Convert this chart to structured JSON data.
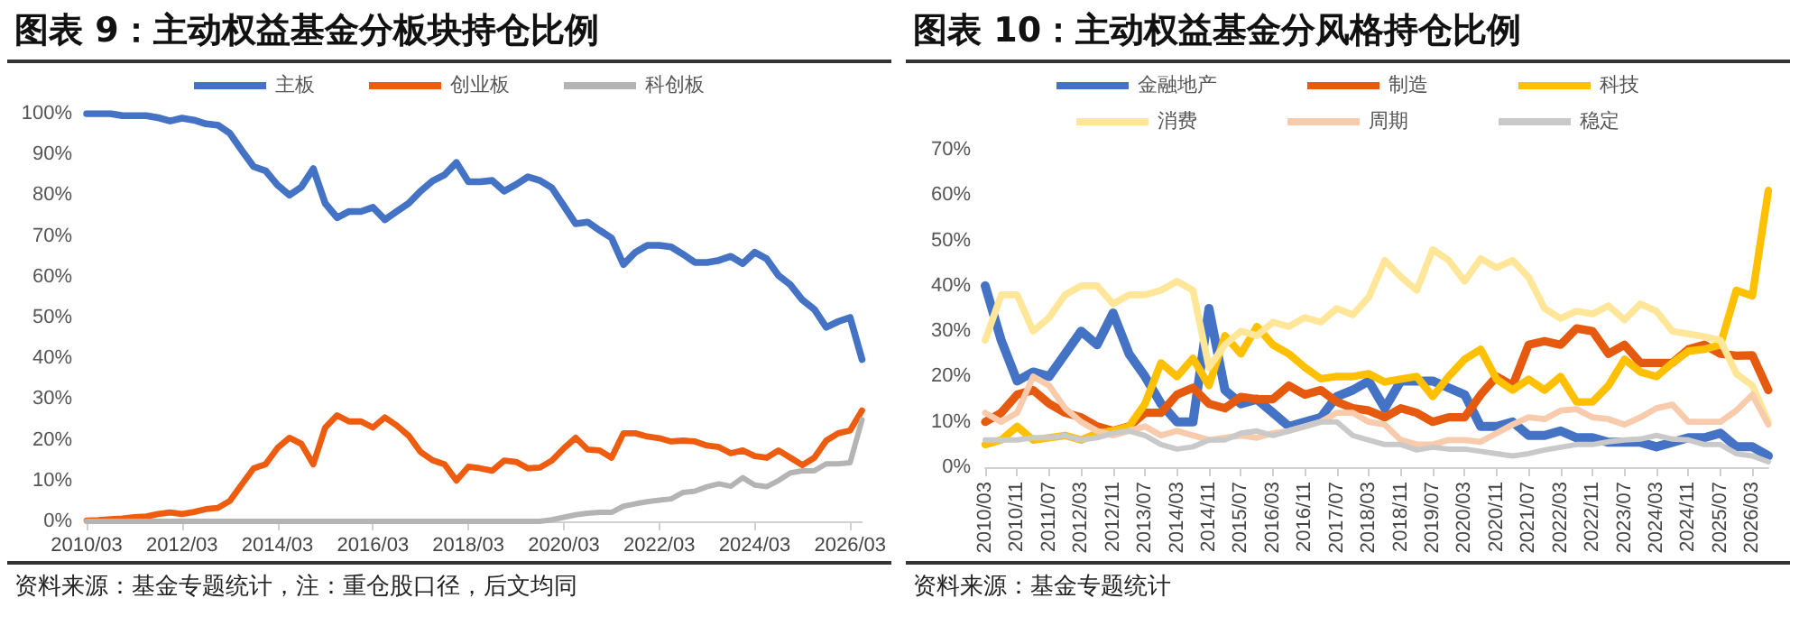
{
  "chart_data": [
    {
      "type": "line",
      "title": "图表 9：主动权益基金分板块持仓比例",
      "annotations": [
        "资料来源：基金专题统计，注：重仓股口径，后文均同"
      ],
      "legend": "top",
      "marker": "none",
      "categories": [
        "2010/03",
        null,
        null,
        null,
        null,
        null,
        null,
        null,
        "2012/03",
        null,
        null,
        null,
        null,
        null,
        null,
        null,
        "2014/03",
        null,
        null,
        null,
        null,
        null,
        null,
        null,
        "2016/03",
        null,
        null,
        null,
        null,
        null,
        null,
        null,
        "2018/03",
        null,
        null,
        null,
        null,
        null,
        null,
        null,
        "2020/03",
        null,
        null,
        null,
        null,
        null,
        null,
        null,
        "2022/03",
        null,
        null,
        null,
        null,
        null,
        null,
        null,
        "2024/03",
        null,
        null,
        null,
        null,
        null,
        null,
        null,
        "2026/03",
        null
      ],
      "ylim": [
        0,
        100
      ],
      "yticks": [
        {
          "value": 0,
          "label": "0%"
        },
        {
          "value": 10,
          "label": "10%"
        },
        {
          "value": 20,
          "label": "20%"
        },
        {
          "value": 30,
          "label": "30%"
        },
        {
          "value": 40,
          "label": "40%"
        },
        {
          "value": 50,
          "label": "50%"
        },
        {
          "value": 60,
          "label": "60%"
        },
        {
          "value": 70,
          "label": "70%"
        },
        {
          "value": 80,
          "label": "80%"
        },
        {
          "value": 90,
          "label": "90%"
        },
        {
          "value": 100,
          "label": "100%"
        }
      ],
      "series": [
        {
          "name": "主板",
          "color": "#4472c4",
          "values": [
            100,
            100,
            100,
            99.5,
            99.5,
            99.5,
            99,
            98.2,
            98.9,
            98.4,
            97.5,
            97.2,
            95.2,
            91,
            87,
            86,
            82.5,
            80,
            82,
            86.5,
            78,
            74.5,
            76,
            76,
            77,
            74,
            76,
            78,
            81,
            83.5,
            85,
            88,
            83.3,
            83.3,
            83.6,
            81,
            82.6,
            84.5,
            83.6,
            81.8,
            77.4,
            73,
            73.4,
            71.4,
            69.5,
            63,
            66,
            67.7,
            67.7,
            67.3,
            65.5,
            63.5,
            63.5,
            64,
            65,
            63.2,
            66,
            64.4,
            60.3,
            58,
            54.3,
            52,
            47.6,
            49,
            50,
            39.7
          ]
        },
        {
          "name": "创业板",
          "color": "#ed5c0f",
          "values": [
            0.2,
            0.3,
            0.5,
            0.7,
            1,
            1.2,
            1.8,
            2.2,
            1.8,
            2.3,
            3,
            3.3,
            5,
            9,
            13,
            14,
            18,
            20.5,
            19,
            14,
            23,
            26,
            24.5,
            24.5,
            23,
            25.5,
            23.5,
            21,
            17,
            15,
            14,
            10,
            13.4,
            13,
            12.4,
            14.9,
            14.6,
            13,
            13.2,
            14.9,
            17.9,
            20.5,
            17.6,
            17.4,
            15.6,
            21.6,
            21.6,
            20.8,
            20.4,
            19.6,
            19.8,
            19.6,
            18.6,
            18.2,
            16.7,
            17.4,
            16,
            15.6,
            17.4,
            15.6,
            13.8,
            15.6,
            19.8,
            21.6,
            22.3,
            27.2
          ]
        },
        {
          "name": "科创板",
          "color": "#b4b4b4",
          "values": [
            0,
            0,
            0,
            0,
            0,
            0,
            0,
            0,
            0,
            0,
            0,
            0,
            0,
            0,
            0,
            0,
            0,
            0,
            0,
            0,
            0,
            0,
            0,
            0,
            0,
            0,
            0,
            0,
            0,
            0,
            0,
            0,
            0,
            0,
            0,
            0,
            0,
            0,
            0,
            0.4,
            1,
            1.6,
            2,
            2.2,
            2.2,
            3.7,
            4.3,
            4.8,
            5.2,
            5.5,
            7.1,
            7.4,
            8.5,
            9.2,
            8.6,
            10.7,
            8.9,
            8.5,
            10,
            11.9,
            12.4,
            12.4,
            14.1,
            14.1,
            14.4,
            24.9
          ]
        }
      ]
    },
    {
      "type": "line",
      "title": "图表 10：主动权益基金分风格持仓比例",
      "annotations": [
        "资料来源：基金专题统计"
      ],
      "legend": "top",
      "marker": "none",
      "categories": [
        "2010/03",
        null,
        "2010/11",
        null,
        "2011/07",
        null,
        "2012/03",
        null,
        "2012/11",
        null,
        "2013/07",
        null,
        "2014/03",
        null,
        "2014/11",
        null,
        "2015/07",
        null,
        "2016/03",
        null,
        "2016/11",
        null,
        "2017/07",
        null,
        "2018/03",
        null,
        "2018/11",
        null,
        "2019/07",
        null,
        "2020/03",
        null,
        "2020/11",
        null,
        "2021/07",
        null,
        "2022/03",
        null,
        "2022/11",
        null,
        "2023/07",
        null,
        "2024/03",
        null,
        "2024/11",
        null,
        "2025/07",
        null,
        "2026/03",
        null
      ],
      "ylim": [
        0,
        70
      ],
      "yticks": [
        {
          "value": 0,
          "label": "0%"
        },
        {
          "value": 10,
          "label": "10%"
        },
        {
          "value": 20,
          "label": "20%"
        },
        {
          "value": 30,
          "label": "30%"
        },
        {
          "value": 40,
          "label": "40%"
        },
        {
          "value": 50,
          "label": "50%"
        },
        {
          "value": 60,
          "label": "60%"
        },
        {
          "value": 70,
          "label": "70%"
        }
      ],
      "series": [
        {
          "name": "金融地产",
          "color": "#4472c4",
          "values": [
            40,
            28,
            19,
            21,
            20,
            25,
            30,
            27,
            34,
            25,
            20,
            14,
            10,
            10,
            35,
            17,
            14,
            15,
            12,
            9,
            10,
            11,
            15.6,
            17,
            19,
            13,
            19,
            19,
            19,
            17.5,
            16,
            9,
            9,
            10,
            7,
            7,
            8,
            6.5,
            6.5,
            5.5,
            5.5,
            5.5,
            4.5,
            5.5,
            6.5,
            6.5,
            7.5,
            4.5,
            4.5,
            2.5
          ]
        },
        {
          "name": "制造",
          "color": "#e55a0f",
          "values": [
            10,
            12,
            16,
            17,
            14,
            12,
            11,
            9,
            8,
            9,
            12,
            12,
            16,
            17.5,
            14,
            13,
            15.5,
            15,
            15,
            18,
            16,
            17,
            14.4,
            13,
            12.5,
            11,
            13,
            12,
            10,
            11,
            11,
            16,
            20,
            18,
            27,
            27.8,
            27,
            30.6,
            30,
            25,
            27,
            23,
            23,
            23,
            26,
            27,
            25,
            24.6,
            24.7,
            17
          ]
        },
        {
          "name": "科技",
          "color": "#ffc000",
          "values": [
            5,
            6,
            9,
            6,
            6.5,
            7,
            6,
            7.5,
            8,
            9,
            14,
            23,
            20,
            24,
            18,
            29,
            25,
            31,
            27,
            25,
            22,
            19.5,
            20,
            20,
            20.6,
            18.8,
            19.4,
            20,
            15.6,
            20,
            23.8,
            26,
            19.4,
            17,
            19.4,
            17,
            20,
            14.4,
            14.4,
            18,
            23.8,
            21,
            20,
            23,
            25.6,
            26,
            27,
            39,
            37.8,
            61
          ]
        },
        {
          "name": "消费",
          "color": "#ffe699",
          "values": [
            28,
            38,
            38,
            30,
            33,
            38,
            40,
            40,
            36,
            38,
            38,
            39,
            41,
            39,
            22,
            27,
            30,
            29,
            32,
            31,
            33,
            32,
            35,
            33.6,
            37.5,
            45.6,
            42,
            39,
            48,
            45.6,
            41,
            46,
            44,
            45.6,
            41.9,
            35,
            32.8,
            34.4,
            33.8,
            35.6,
            32.5,
            36,
            34.4,
            30,
            29.4,
            28.8,
            28,
            20.6,
            18,
            10
          ]
        },
        {
          "name": "周期",
          "color": "#f8cbad",
          "values": [
            12,
            10,
            12,
            20,
            18,
            13,
            10,
            8,
            7,
            8,
            9,
            7,
            8,
            7,
            6,
            6.5,
            7,
            6.5,
            7.5,
            8,
            9,
            10,
            12,
            12,
            10,
            9.4,
            6,
            5,
            5,
            6,
            6,
            5.6,
            7.5,
            9.4,
            11,
            10.6,
            12.5,
            12.8,
            11,
            10.6,
            9.4,
            11,
            13,
            13.8,
            10,
            10,
            10,
            12.5,
            16,
            9.4
          ]
        },
        {
          "name": "稳定",
          "color": "#c9c9c9",
          "values": [
            6,
            6,
            6,
            6.5,
            6.5,
            7,
            6,
            6.5,
            7.5,
            8,
            7,
            5,
            4,
            4.5,
            6,
            6,
            7.5,
            8,
            7,
            8,
            9,
            10,
            10,
            7,
            6,
            5,
            5,
            3.8,
            4.4,
            4,
            4,
            3.5,
            3,
            2.5,
            3,
            3.8,
            4.4,
            5,
            5,
            5.6,
            6,
            6.2,
            7,
            6.2,
            6,
            5,
            5,
            3,
            2.5,
            1.2
          ]
        }
      ]
    }
  ]
}
